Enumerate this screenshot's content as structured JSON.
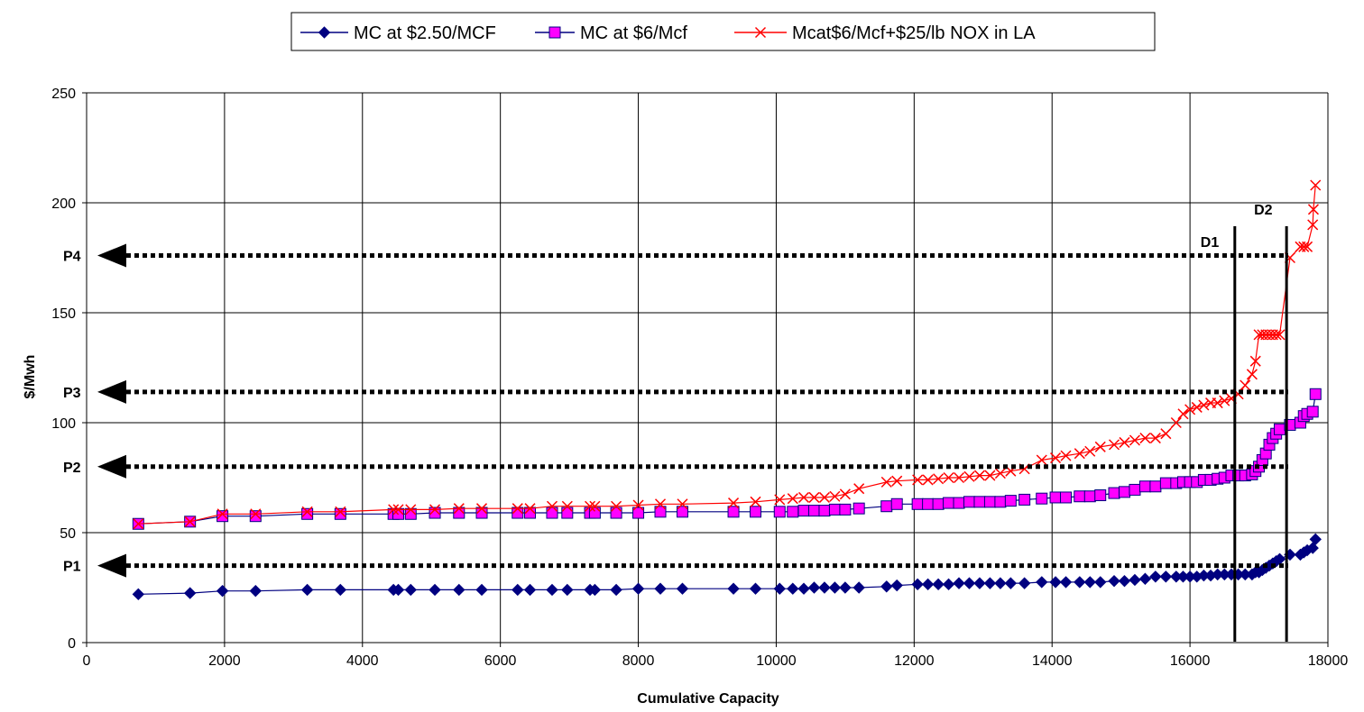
{
  "chart_data": {
    "type": "line",
    "title": "",
    "xlabel": "Cumulative Capacity",
    "ylabel": "$/Mwh",
    "xlim": [
      0,
      18000
    ],
    "ylim": [
      0,
      250
    ],
    "x_ticks": [
      "0",
      "2000",
      "4000",
      "6000",
      "8000",
      "10000",
      "12000",
      "14000",
      "16000",
      "18000"
    ],
    "y_ticks": [
      "0",
      "50",
      "100",
      "150",
      "200",
      "250"
    ],
    "grid": true,
    "legend_position": "top-center",
    "series": [
      {
        "name": "MC at $2.50/MCF",
        "color": "#000080",
        "marker": "diamond",
        "points": [
          [
            750,
            22
          ],
          [
            1500,
            22.5
          ],
          [
            1970,
            23.5
          ],
          [
            2450,
            23.5
          ],
          [
            3200,
            24
          ],
          [
            3680,
            24
          ],
          [
            4450,
            24
          ],
          [
            4520,
            24
          ],
          [
            4700,
            24
          ],
          [
            5050,
            24
          ],
          [
            5400,
            24
          ],
          [
            5730,
            24
          ],
          [
            6250,
            24
          ],
          [
            6430,
            24
          ],
          [
            6750,
            24
          ],
          [
            6970,
            24
          ],
          [
            7300,
            24
          ],
          [
            7370,
            24
          ],
          [
            7680,
            24
          ],
          [
            8000,
            24.5
          ],
          [
            8320,
            24.5
          ],
          [
            8640,
            24.5
          ],
          [
            9380,
            24.5
          ],
          [
            9700,
            24.5
          ],
          [
            10050,
            24.5
          ],
          [
            10240,
            24.5
          ],
          [
            10400,
            24.5
          ],
          [
            10550,
            25
          ],
          [
            10700,
            25
          ],
          [
            10850,
            25
          ],
          [
            11000,
            25
          ],
          [
            11200,
            25
          ],
          [
            11600,
            25.5
          ],
          [
            11750,
            26
          ],
          [
            12050,
            26.5
          ],
          [
            12200,
            26.5
          ],
          [
            12350,
            26.5
          ],
          [
            12500,
            26.5
          ],
          [
            12650,
            27
          ],
          [
            12800,
            27
          ],
          [
            12950,
            27
          ],
          [
            13100,
            27
          ],
          [
            13250,
            27
          ],
          [
            13400,
            27
          ],
          [
            13600,
            27
          ],
          [
            13850,
            27.5
          ],
          [
            14050,
            27.5
          ],
          [
            14200,
            27.5
          ],
          [
            14400,
            27.5
          ],
          [
            14550,
            27.5
          ],
          [
            14700,
            27.5
          ],
          [
            14900,
            28
          ],
          [
            15050,
            28
          ],
          [
            15200,
            28.5
          ],
          [
            15350,
            29
          ],
          [
            15500,
            30
          ],
          [
            15650,
            30
          ],
          [
            15800,
            30
          ],
          [
            15900,
            30
          ],
          [
            16000,
            30
          ],
          [
            16100,
            30
          ],
          [
            16200,
            30.5
          ],
          [
            16300,
            30.5
          ],
          [
            16400,
            31
          ],
          [
            16500,
            31
          ],
          [
            16600,
            31
          ],
          [
            16700,
            31
          ],
          [
            16800,
            31
          ],
          [
            16900,
            31
          ],
          [
            16950,
            32
          ],
          [
            17000,
            32
          ],
          [
            17050,
            33
          ],
          [
            17100,
            34
          ],
          [
            17150,
            35
          ],
          [
            17200,
            36
          ],
          [
            17250,
            37
          ],
          [
            17300,
            38
          ],
          [
            17450,
            40
          ],
          [
            17600,
            40
          ],
          [
            17650,
            41
          ],
          [
            17700,
            42
          ],
          [
            17780,
            43
          ],
          [
            17820,
            47
          ]
        ]
      },
      {
        "name": "MC at $6/Mcf",
        "color": "#FF00FF",
        "edge": "#000080",
        "marker": "square",
        "points": [
          [
            750,
            54
          ],
          [
            1500,
            55
          ],
          [
            1970,
            57.5
          ],
          [
            2450,
            57.5
          ],
          [
            3200,
            58.5
          ],
          [
            3680,
            58.5
          ],
          [
            4450,
            58.5
          ],
          [
            4520,
            58.5
          ],
          [
            4700,
            58.5
          ],
          [
            5050,
            59
          ],
          [
            5400,
            59
          ],
          [
            5730,
            59
          ],
          [
            6250,
            59
          ],
          [
            6430,
            59
          ],
          [
            6750,
            59
          ],
          [
            6970,
            59
          ],
          [
            7300,
            59
          ],
          [
            7370,
            59
          ],
          [
            7680,
            59
          ],
          [
            8000,
            59
          ],
          [
            8320,
            59.5
          ],
          [
            8640,
            59.5
          ],
          [
            9380,
            59.5
          ],
          [
            9700,
            59.5
          ],
          [
            10050,
            59.5
          ],
          [
            10240,
            59.5
          ],
          [
            10400,
            60
          ],
          [
            10550,
            60
          ],
          [
            10700,
            60
          ],
          [
            10850,
            60.5
          ],
          [
            11000,
            60.5
          ],
          [
            11200,
            61
          ],
          [
            11600,
            62
          ],
          [
            11750,
            63
          ],
          [
            12050,
            63
          ],
          [
            12200,
            63
          ],
          [
            12350,
            63
          ],
          [
            12500,
            63.5
          ],
          [
            12650,
            63.5
          ],
          [
            12800,
            64
          ],
          [
            12950,
            64
          ],
          [
            13100,
            64
          ],
          [
            13250,
            64
          ],
          [
            13400,
            64.5
          ],
          [
            13600,
            65
          ],
          [
            13850,
            65.5
          ],
          [
            14050,
            66
          ],
          [
            14200,
            66
          ],
          [
            14400,
            66.5
          ],
          [
            14550,
            66.5
          ],
          [
            14700,
            67
          ],
          [
            14900,
            68
          ],
          [
            15050,
            68.5
          ],
          [
            15200,
            69.5
          ],
          [
            15350,
            71
          ],
          [
            15500,
            71
          ],
          [
            15650,
            72.5
          ],
          [
            15800,
            72.5
          ],
          [
            15900,
            73
          ],
          [
            16000,
            73
          ],
          [
            16100,
            73
          ],
          [
            16200,
            74
          ],
          [
            16300,
            74
          ],
          [
            16400,
            74.5
          ],
          [
            16500,
            75
          ],
          [
            16600,
            76
          ],
          [
            16700,
            76
          ],
          [
            16800,
            76
          ],
          [
            16900,
            76.5
          ],
          [
            16950,
            78
          ],
          [
            17000,
            80
          ],
          [
            17050,
            83
          ],
          [
            17100,
            86
          ],
          [
            17150,
            90
          ],
          [
            17200,
            93
          ],
          [
            17250,
            95
          ],
          [
            17300,
            97
          ],
          [
            17450,
            99
          ],
          [
            17600,
            100
          ],
          [
            17650,
            103
          ],
          [
            17700,
            104
          ],
          [
            17780,
            105
          ],
          [
            17820,
            113
          ]
        ]
      },
      {
        "name": "Mcat$6/Mcf+$25/lb NOX in LA",
        "color": "#FF0000",
        "marker": "x",
        "points": [
          [
            750,
            54
          ],
          [
            1500,
            55
          ],
          [
            1970,
            58.5
          ],
          [
            2450,
            58.5
          ],
          [
            3200,
            59.5
          ],
          [
            3680,
            59.5
          ],
          [
            4450,
            60.5
          ],
          [
            4520,
            60.5
          ],
          [
            4700,
            60.5
          ],
          [
            5050,
            60.5
          ],
          [
            5400,
            61
          ],
          [
            5730,
            61
          ],
          [
            6250,
            61
          ],
          [
            6430,
            61
          ],
          [
            6750,
            62
          ],
          [
            6970,
            62
          ],
          [
            7300,
            62
          ],
          [
            7370,
            62
          ],
          [
            7680,
            62
          ],
          [
            8000,
            62.5
          ],
          [
            8320,
            63
          ],
          [
            8640,
            63
          ],
          [
            9380,
            63.5
          ],
          [
            9700,
            64
          ],
          [
            10050,
            65
          ],
          [
            10240,
            65.5
          ],
          [
            10400,
            66
          ],
          [
            10550,
            66
          ],
          [
            10700,
            66
          ],
          [
            10850,
            66.5
          ],
          [
            11000,
            67.5
          ],
          [
            11200,
            70
          ],
          [
            11600,
            73
          ],
          [
            11750,
            73.5
          ],
          [
            12050,
            74
          ],
          [
            12200,
            74
          ],
          [
            12350,
            74.5
          ],
          [
            12500,
            75
          ],
          [
            12650,
            75
          ],
          [
            12800,
            75.5
          ],
          [
            12950,
            76
          ],
          [
            13100,
            76
          ],
          [
            13250,
            77
          ],
          [
            13400,
            78
          ],
          [
            13600,
            79
          ],
          [
            13850,
            83
          ],
          [
            14050,
            84
          ],
          [
            14200,
            85
          ],
          [
            14400,
            86
          ],
          [
            14550,
            87
          ],
          [
            14700,
            89
          ],
          [
            14900,
            90
          ],
          [
            15050,
            91
          ],
          [
            15200,
            92
          ],
          [
            15350,
            93
          ],
          [
            15500,
            93
          ],
          [
            15650,
            95
          ],
          [
            15800,
            100
          ],
          [
            15900,
            104
          ],
          [
            16000,
            106
          ],
          [
            16100,
            107
          ],
          [
            16200,
            108
          ],
          [
            16300,
            109
          ],
          [
            16400,
            109
          ],
          [
            16500,
            110
          ],
          [
            16600,
            111
          ],
          [
            16700,
            113
          ],
          [
            16800,
            117
          ],
          [
            16900,
            122
          ],
          [
            16950,
            128
          ],
          [
            17000,
            140
          ],
          [
            17050,
            140
          ],
          [
            17100,
            140
          ],
          [
            17150,
            140
          ],
          [
            17200,
            140
          ],
          [
            17250,
            140
          ],
          [
            17300,
            140
          ],
          [
            17450,
            175
          ],
          [
            17600,
            180
          ],
          [
            17650,
            180
          ],
          [
            17700,
            180
          ],
          [
            17780,
            190
          ],
          [
            17790,
            197
          ],
          [
            17820,
            208
          ]
        ]
      }
    ],
    "annotations": {
      "price_levels": [
        {
          "label": "P1",
          "value": 35
        },
        {
          "label": "P2",
          "value": 80
        },
        {
          "label": "P3",
          "value": 114
        },
        {
          "label": "P4",
          "value": 176
        }
      ],
      "demand_lines": [
        {
          "label": "D1",
          "x": 16650
        },
        {
          "label": "D2",
          "x": 17400
        }
      ]
    }
  }
}
